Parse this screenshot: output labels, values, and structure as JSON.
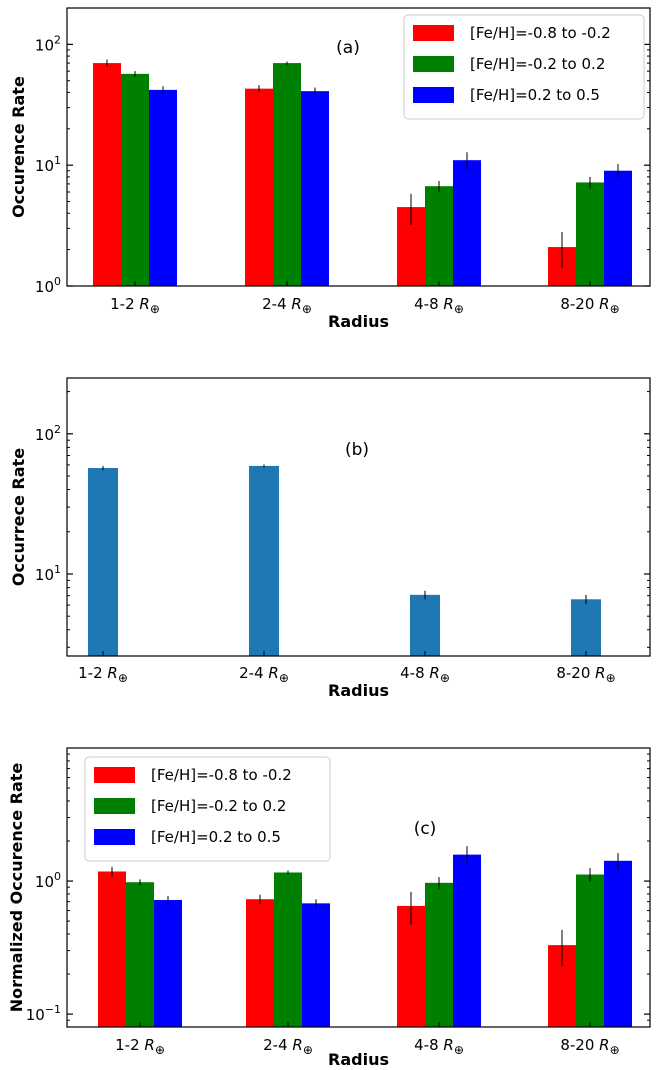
{
  "chart_data": [
    {
      "type": "bar",
      "panel_label": "(a)",
      "categories": [
        "1-2",
        "2-4",
        "4-8",
        "8-20"
      ],
      "category_unit": "R⊕",
      "xlabel": "Radius",
      "ylabel": "Occurence Rate",
      "yscale": "log",
      "ylim": [
        1,
        200
      ],
      "yticks": [
        {
          "value": 1,
          "base": "10",
          "exp": "0"
        },
        {
          "value": 10,
          "base": "10",
          "exp": "1"
        },
        {
          "value": 100,
          "base": "10",
          "exp": "2"
        }
      ],
      "legend": "top-right",
      "series": [
        {
          "name": "[Fe/H]=-0.8 to -0.2",
          "color": "#ff0000",
          "values": [
            70,
            43,
            4.5,
            2.1
          ],
          "err": [
            5,
            3,
            1.3,
            0.7
          ]
        },
        {
          "name": "[Fe/H]=-0.2 to 0.2",
          "color": "#008000",
          "values": [
            57,
            70,
            6.7,
            7.2
          ],
          "err": [
            3,
            2,
            0.7,
            0.8
          ]
        },
        {
          "name": "[Fe/H]=0.2 to 0.5",
          "color": "#0000ff",
          "values": [
            42,
            41,
            11,
            9
          ],
          "err": [
            3,
            3,
            1.8,
            1.2
          ]
        }
      ]
    },
    {
      "type": "bar",
      "panel_label": "(b)",
      "categories": [
        "1-2",
        "2-4",
        "4-8",
        "8-20"
      ],
      "category_unit": "R⊕",
      "xlabel": "Radius",
      "ylabel": "Occurrece Rate",
      "yscale": "log",
      "ylim": [
        2.6,
        250
      ],
      "yticks": [
        {
          "value": 10,
          "base": "10",
          "exp": "1"
        },
        {
          "value": 100,
          "base": "10",
          "exp": "2"
        }
      ],
      "series": [
        {
          "color": "#1f77b4",
          "values": [
            57,
            59,
            7.1,
            6.6
          ],
          "err": [
            2,
            1.5,
            0.5,
            0.5
          ]
        }
      ]
    },
    {
      "type": "bar",
      "panel_label": "(c)",
      "categories": [
        "1-2",
        "2-4",
        "4-8",
        "8-20"
      ],
      "category_unit": "R⊕",
      "xlabel": "Radius",
      "ylabel": "Normalized Occurence Rate",
      "yscale": "log",
      "ylim": [
        0.08,
        10
      ],
      "yticks": [
        {
          "value": 0.1,
          "base": "10",
          "exp": "−1"
        },
        {
          "value": 1,
          "base": "10",
          "exp": "0"
        }
      ],
      "legend": "top-left",
      "series": [
        {
          "name": "[Fe/H]=-0.8 to -0.2",
          "color": "#ff0000",
          "values": [
            1.18,
            0.73,
            0.65,
            0.33
          ],
          "err": [
            0.1,
            0.06,
            0.18,
            0.1
          ]
        },
        {
          "name": "[Fe/H]=-0.2 to 0.2",
          "color": "#008000",
          "values": [
            0.98,
            1.16,
            0.97,
            1.12
          ],
          "err": [
            0.05,
            0.04,
            0.1,
            0.13
          ]
        },
        {
          "name": "[Fe/H]=0.2 to 0.5",
          "color": "#0000ff",
          "values": [
            0.72,
            0.68,
            1.58,
            1.42
          ],
          "err": [
            0.05,
            0.05,
            0.25,
            0.2
          ]
        }
      ]
    }
  ]
}
